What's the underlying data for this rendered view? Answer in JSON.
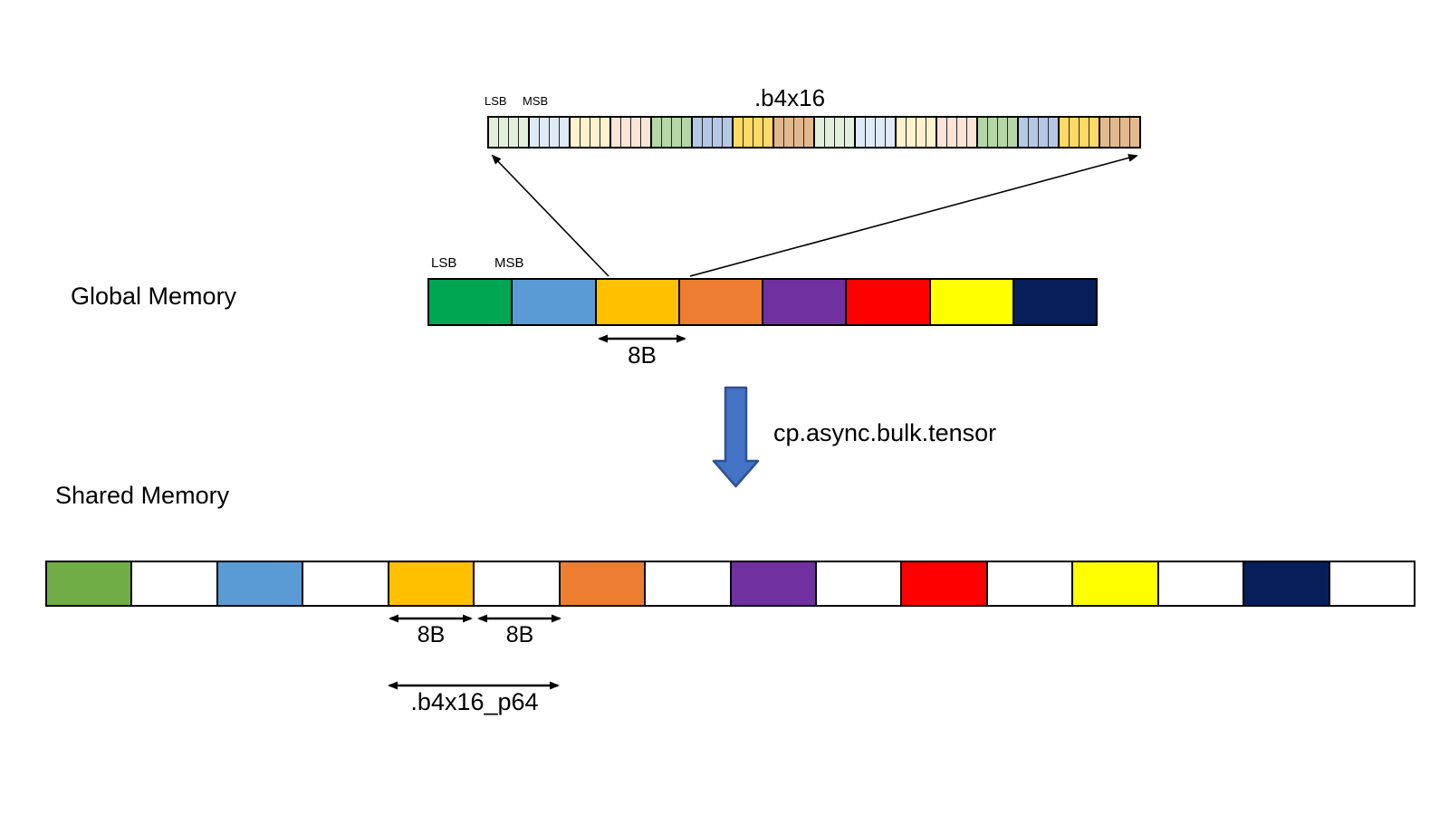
{
  "b4x16_bar": {
    "title": ".b4x16",
    "lsb_label": "LSB",
    "msb_label": "MSB",
    "cells_per_group": 4,
    "groups": [
      "#E2EFDA",
      "#DEEAF6",
      "#FFF2CC",
      "#FBE5D6",
      "#B5D6A7",
      "#B4C7E7",
      "#FFD966",
      "#E2B98E",
      "#E2EFDA",
      "#DEEAF6",
      "#FFF2CC",
      "#FBE5D6",
      "#B5D6A7",
      "#B4C7E7",
      "#FFD966",
      "#E2B98E"
    ]
  },
  "global_memory": {
    "label": "Global Memory",
    "lsb_label": "LSB",
    "msb_label": "MSB",
    "blocks": [
      "#00A651",
      "#5B9BD5",
      "#FFC000",
      "#ED7D31",
      "#7030A0",
      "#FF0000",
      "#FFFF00",
      "#061F5B"
    ],
    "chunk_size_label": "8B"
  },
  "transfer_arrow": {
    "label": "cp.async.bulk.tensor",
    "fill": "#4472C4",
    "border": "#2F528F"
  },
  "shared_memory": {
    "label": "Shared Memory",
    "blocks": [
      "#70AD47",
      "#FFFFFF",
      "#5B9BD5",
      "#FFFFFF",
      "#FFC000",
      "#FFFFFF",
      "#ED7D31",
      "#FFFFFF",
      "#7030A0",
      "#FFFFFF",
      "#FF0000",
      "#FFFFFF",
      "#FFFF00",
      "#FFFFFF",
      "#061F5B",
      "#FFFFFF"
    ],
    "chunk_size_labels": [
      "8B",
      "8B"
    ],
    "swizzle_label": ".b4x16_p64"
  }
}
